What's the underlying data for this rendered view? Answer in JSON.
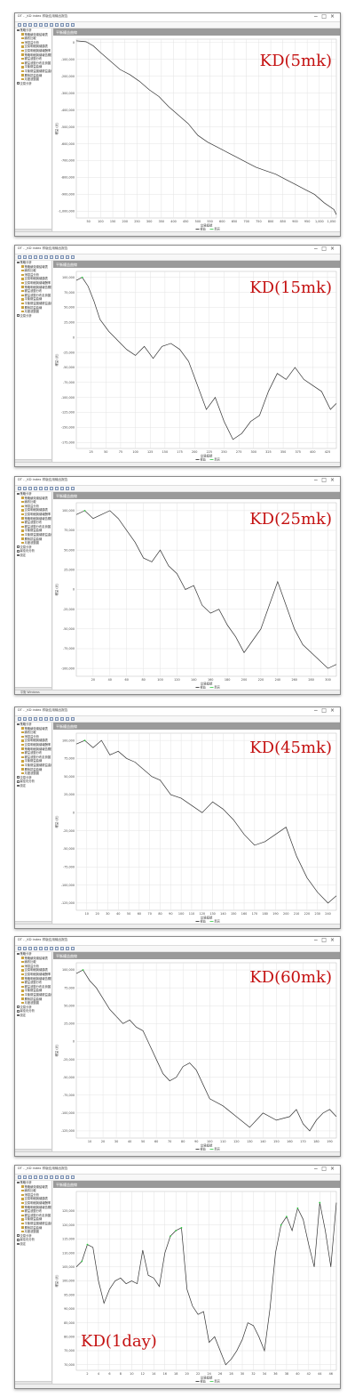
{
  "window": {
    "title": "DT - _KD index 样版应用输出报告",
    "controls": [
      "−",
      "□",
      "×"
    ]
  },
  "chart_header_label": "平衡權益曲線",
  "sidebar": {
    "items": [
      "策略分析",
      "策略績效總結報表",
      "績效比較",
      "淨損益分析",
      "交易明細與總額表",
      "交易明細與總報酬率",
      "策略明細與總報告關於",
      "權益波動分布",
      "權益波動分布走勢圖",
      "平衡權益曲線",
      "平衡權益圖總權益曲線",
      "累積損益曲線",
      "月度波動圖",
      "交易分析",
      "最佳化分析",
      "設定"
    ]
  },
  "status_text": "平衡 Windows",
  "charts": [
    {
      "label": "KD(5mk)",
      "chart_data": {
        "type": "line",
        "xlabel": "交易編號",
        "ylabel": "權益 (元)",
        "x_ticks": [
          "50",
          "100",
          "150",
          "200",
          "250",
          "300",
          "350",
          "400",
          "450",
          "500",
          "550",
          "600",
          "650",
          "700",
          "750",
          "800",
          "850",
          "900",
          "950",
          "1,000",
          "1,050"
        ],
        "y_ticks": [
          "0",
          "-100,000",
          "-200,000",
          "-300,000",
          "-400,000",
          "-500,000",
          "-600,000",
          "-700,000",
          "-800,000",
          "-900,000",
          "-1,000,000"
        ],
        "ylim": [
          -1040000,
          20000
        ],
        "xlim": [
          0,
          1070
        ],
        "legend": [
          "權益",
          "新高"
        ],
        "x": [
          0,
          40,
          70,
          100,
          140,
          180,
          220,
          260,
          300,
          340,
          380,
          420,
          460,
          500,
          540,
          580,
          620,
          660,
          700,
          740,
          780,
          820,
          860,
          900,
          940,
          980,
          1020,
          1060,
          1070
        ],
        "y": [
          10000,
          5000,
          -20000,
          -60000,
          -110000,
          -160000,
          -190000,
          -230000,
          -280000,
          -320000,
          -380000,
          -430000,
          -480000,
          -550000,
          -590000,
          -620000,
          -650000,
          -680000,
          -710000,
          -740000,
          -760000,
          -780000,
          -810000,
          -840000,
          -870000,
          -900000,
          -950000,
          -990000,
          -1020000
        ]
      }
    },
    {
      "label": "KD(15mk)",
      "chart_data": {
        "type": "line",
        "xlabel": "交易編號",
        "ylabel": "權益 (元)",
        "x_ticks": [
          "25",
          "50",
          "75",
          "100",
          "125",
          "150",
          "175",
          "200",
          "225",
          "250",
          "275",
          "300",
          "325",
          "350",
          "375",
          "400",
          "425"
        ],
        "y_ticks": [
          "100,000",
          "75,000",
          "50,000",
          "25,000",
          "0",
          "-25,000",
          "-50,000",
          "-75,000",
          "-100,000",
          "-125,000",
          "-150,000",
          "-175,000"
        ],
        "ylim": [
          -185000,
          110000
        ],
        "xlim": [
          0,
          440
        ],
        "legend": [
          "權益",
          "新高"
        ],
        "x": [
          0,
          10,
          20,
          30,
          40,
          55,
          70,
          85,
          100,
          115,
          130,
          145,
          160,
          175,
          190,
          205,
          220,
          235,
          250,
          265,
          280,
          295,
          310,
          325,
          340,
          355,
          370,
          385,
          400,
          415,
          430,
          440
        ],
        "y": [
          95000,
          100000,
          85000,
          60000,
          30000,
          10000,
          -5000,
          -20000,
          -30000,
          -15000,
          -35000,
          -15000,
          -10000,
          -20000,
          -40000,
          -80000,
          -120000,
          -100000,
          -140000,
          -170000,
          -160000,
          -140000,
          -130000,
          -90000,
          -60000,
          -70000,
          -50000,
          -70000,
          -80000,
          -90000,
          -120000,
          -110000
        ]
      }
    },
    {
      "label": "KD(25mk)",
      "chart_data": {
        "type": "line",
        "xlabel": "交易編號",
        "ylabel": "權益 (元)",
        "x_ticks": [
          "20",
          "40",
          "60",
          "80",
          "100",
          "120",
          "140",
          "160",
          "180",
          "200",
          "220",
          "240",
          "260",
          "280",
          "300"
        ],
        "y_ticks": [
          "100,000",
          "75,000",
          "50,000",
          "25,000",
          "0",
          "-25,000",
          "-50,000",
          "-75,000",
          "-100,000"
        ],
        "ylim": [
          -110000,
          110000
        ],
        "xlim": [
          0,
          310
        ],
        "legend": [
          "權益",
          "新高"
        ],
        "x": [
          0,
          10,
          20,
          30,
          40,
          50,
          60,
          70,
          80,
          90,
          100,
          110,
          120,
          130,
          140,
          150,
          160,
          170,
          180,
          190,
          200,
          210,
          220,
          230,
          240,
          250,
          260,
          270,
          280,
          290,
          300,
          310
        ],
        "y": [
          95000,
          100000,
          90000,
          95000,
          100000,
          90000,
          75000,
          60000,
          40000,
          35000,
          50000,
          30000,
          20000,
          0,
          5000,
          -20000,
          -30000,
          -25000,
          -45000,
          -60000,
          -80000,
          -65000,
          -50000,
          -20000,
          10000,
          -20000,
          -50000,
          -70000,
          -80000,
          -90000,
          -100000,
          -95000
        ]
      }
    },
    {
      "label": "KD(45mk)",
      "chart_data": {
        "type": "line",
        "xlabel": "交易編號",
        "ylabel": "權益 (元)",
        "x_ticks": [
          "10",
          "20",
          "30",
          "40",
          "50",
          "60",
          "70",
          "80",
          "90",
          "100",
          "110",
          "120",
          "130",
          "140",
          "150",
          "160",
          "170",
          "180",
          "190",
          "200",
          "210",
          "220",
          "230",
          "240"
        ],
        "y_ticks": [
          "100,000",
          "75,000",
          "50,000",
          "25,000",
          "0",
          "-25,000",
          "-50,000",
          "-75,000",
          "-100,000",
          "-125,000"
        ],
        "ylim": [
          -135000,
          110000
        ],
        "xlim": [
          0,
          248
        ],
        "legend": [
          "權益",
          "新高"
        ],
        "x": [
          0,
          8,
          16,
          24,
          32,
          40,
          48,
          56,
          64,
          72,
          80,
          90,
          100,
          110,
          120,
          130,
          140,
          150,
          160,
          170,
          180,
          190,
          200,
          210,
          220,
          230,
          240,
          248
        ],
        "y": [
          95000,
          100000,
          90000,
          100000,
          80000,
          85000,
          75000,
          70000,
          60000,
          50000,
          45000,
          25000,
          20000,
          10000,
          0,
          15000,
          5000,
          -10000,
          -30000,
          -45000,
          -40000,
          -30000,
          -20000,
          -60000,
          -90000,
          -110000,
          -125000,
          -115000
        ]
      }
    },
    {
      "label": "KD(60mk)",
      "chart_data": {
        "type": "line",
        "xlabel": "交易編號",
        "ylabel": "權益 (元)",
        "x_ticks": [
          "10",
          "20",
          "30",
          "40",
          "50",
          "60",
          "70",
          "80",
          "90",
          "100",
          "110",
          "120",
          "130",
          "140",
          "150",
          "160",
          "170",
          "180",
          "190"
        ],
        "y_ticks": [
          "100,000",
          "75,000",
          "50,000",
          "25,000",
          "0",
          "-25,000",
          "-50,000",
          "-75,000",
          "-100,000",
          "-125,000"
        ],
        "ylim": [
          -135000,
          110000
        ],
        "xlim": [
          0,
          195
        ],
        "legend": [
          "權益",
          "新高"
        ],
        "x": [
          0,
          5,
          10,
          15,
          20,
          25,
          30,
          35,
          40,
          45,
          50,
          55,
          60,
          65,
          70,
          75,
          80,
          85,
          90,
          95,
          100,
          110,
          120,
          130,
          140,
          150,
          160,
          165,
          170,
          175,
          180,
          185,
          190,
          195
        ],
        "y": [
          95000,
          100000,
          85000,
          75000,
          60000,
          45000,
          35000,
          25000,
          30000,
          20000,
          15000,
          -5000,
          -25000,
          -45000,
          -55000,
          -50000,
          -35000,
          -30000,
          -40000,
          -60000,
          -80000,
          -90000,
          -105000,
          -120000,
          -100000,
          -110000,
          -105000,
          -95000,
          -115000,
          -125000,
          -110000,
          -100000,
          -95000,
          -105000
        ]
      }
    },
    {
      "label": "KD(1day)",
      "chart_data": {
        "type": "line",
        "xlabel": "交易編號",
        "ylabel": "權益 (元)",
        "x_ticks": [
          "2",
          "4",
          "6",
          "8",
          "10",
          "12",
          "14",
          "16",
          "18",
          "20",
          "22",
          "24",
          "26",
          "28",
          "30",
          "32",
          "34",
          "36",
          "38",
          "40",
          "42",
          "44",
          "46"
        ],
        "y_ticks": [
          "125,000",
          "120,000",
          "115,000",
          "110,000",
          "105,000",
          "100,000",
          "95,000",
          "90,000",
          "85,000",
          "80,000",
          "75,000",
          "70,000"
        ],
        "ylim": [
          68000,
          132000
        ],
        "xlim": [
          0,
          47
        ],
        "legend": [
          "權益",
          "新高"
        ],
        "x": [
          0,
          1,
          2,
          3,
          4,
          5,
          6,
          7,
          8,
          9,
          10,
          11,
          12,
          13,
          14,
          15,
          16,
          17,
          18,
          19,
          20,
          21,
          22,
          23,
          24,
          25,
          26,
          27,
          28,
          29,
          30,
          31,
          32,
          33,
          34,
          35,
          36,
          37,
          38,
          39,
          40,
          41,
          42,
          43,
          44,
          45,
          46,
          47
        ],
        "y": [
          105000,
          107000,
          113000,
          112000,
          100000,
          92000,
          97000,
          100000,
          101000,
          99000,
          100000,
          99000,
          111000,
          102000,
          101000,
          98000,
          110000,
          116000,
          118000,
          119000,
          97000,
          91000,
          88000,
          89000,
          78000,
          80000,
          75000,
          70000,
          72000,
          75000,
          79000,
          85000,
          84000,
          80000,
          75000,
          90000,
          110000,
          120000,
          123000,
          118000,
          126000,
          122000,
          113000,
          105000,
          128000,
          118000,
          105000,
          128000
        ]
      }
    }
  ]
}
